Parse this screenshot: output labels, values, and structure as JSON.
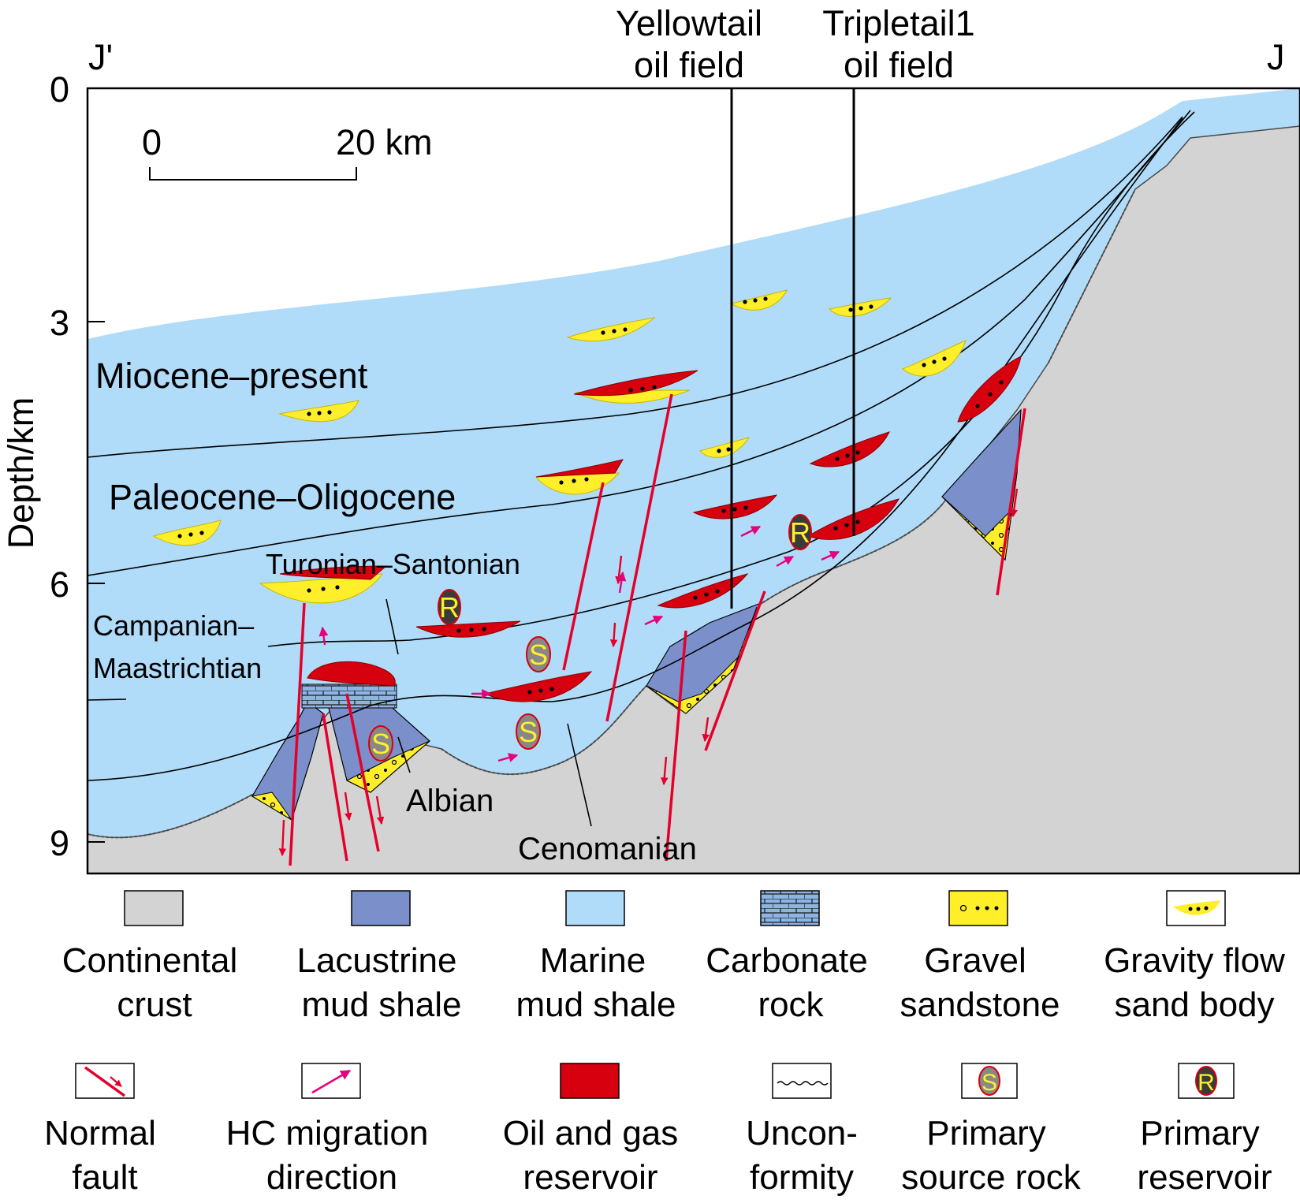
{
  "section": {
    "left_end": "J'",
    "right_end": "J",
    "axis_label": "Depth/km",
    "depth_ticks": [
      "0",
      "3",
      "6",
      "9"
    ],
    "scale_bar": {
      "start": "0",
      "end": "20 km"
    },
    "wells": [
      {
        "line1": "Yellowtail",
        "line2": "oil field"
      },
      {
        "line1": "Tripletail1",
        "line2": "oil field"
      }
    ],
    "units": {
      "miocene": "Miocene–present",
      "paleocene": "Paleocene–Oligocene",
      "turonian": "Turonian–Santonian",
      "campanian1": "Campanian–",
      "campanian2": "Maastrichtian",
      "albian": "Albian",
      "cenomanian": "Cenomanian"
    },
    "markers": {
      "source": "S",
      "reservoir": "R"
    }
  },
  "colors": {
    "continental_crust": "#d3d3d3",
    "lacustrine_shale": "#7b8fca",
    "marine_shale": "#b0dcf9",
    "carbonate": "#8eb4e3",
    "gravel_sandstone": "#ffef2a",
    "reservoir_red": "#d7000f",
    "migration_arrow": "#e6007e",
    "fault_red": "#e4002b"
  },
  "legend": [
    {
      "line1": "Continental",
      "line2": "crust"
    },
    {
      "line1": "Lacustrine",
      "line2": "mud shale"
    },
    {
      "line1": "Marine",
      "line2": "mud shale"
    },
    {
      "line1": "Carbonate",
      "line2": "rock"
    },
    {
      "line1": "Gravel",
      "line2": "sandstone"
    },
    {
      "line1": "Gravity flow",
      "line2": "sand body"
    },
    {
      "line1": "Normal",
      "line2": "fault"
    },
    {
      "line1": "HC migration",
      "line2": "direction"
    },
    {
      "line1": "Oil and gas",
      "line2": "reservoir"
    },
    {
      "line1": "Uncon-",
      "line2": "formity"
    },
    {
      "line1": "Primary",
      "line2": "source rock"
    },
    {
      "line1": "Primary",
      "line2": "reservoir"
    }
  ]
}
